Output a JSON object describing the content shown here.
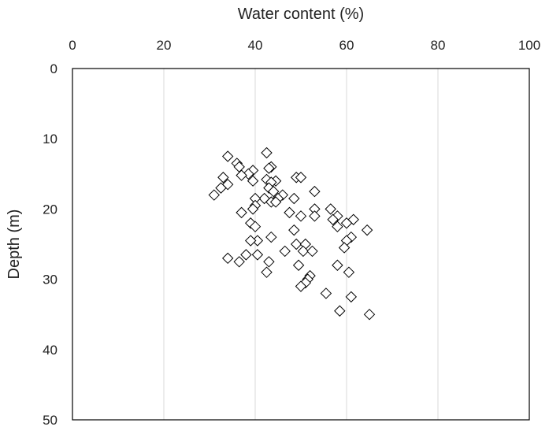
{
  "chart_data": {
    "type": "scatter",
    "xlabel": "Water content (%)",
    "ylabel": "Depth (m)",
    "xlim": [
      0,
      100
    ],
    "ylim": [
      0,
      50
    ],
    "x_axis_position": "top",
    "y_axis_inverted": true,
    "x_ticks": [
      0,
      20,
      40,
      60,
      80,
      100
    ],
    "y_ticks": [
      0,
      10,
      20,
      30,
      40,
      50
    ],
    "grid": "vertical",
    "legend": "none",
    "marker": "diamond-open",
    "marker_color": "#000000",
    "points": [
      {
        "x": 42.5,
        "y": 12.0
      },
      {
        "x": 34.0,
        "y": 12.5
      },
      {
        "x": 36.0,
        "y": 13.5
      },
      {
        "x": 36.5,
        "y": 14.0
      },
      {
        "x": 43.5,
        "y": 14.0
      },
      {
        "x": 39.5,
        "y": 14.5
      },
      {
        "x": 43.0,
        "y": 14.2
      },
      {
        "x": 38.5,
        "y": 15.0
      },
      {
        "x": 37.0,
        "y": 15.2
      },
      {
        "x": 49.0,
        "y": 15.5
      },
      {
        "x": 50.0,
        "y": 15.5
      },
      {
        "x": 33.0,
        "y": 15.5
      },
      {
        "x": 42.5,
        "y": 15.8
      },
      {
        "x": 44.5,
        "y": 16.0
      },
      {
        "x": 39.5,
        "y": 16.0
      },
      {
        "x": 43.5,
        "y": 16.2
      },
      {
        "x": 34.0,
        "y": 16.5
      },
      {
        "x": 32.5,
        "y": 17.0
      },
      {
        "x": 43.0,
        "y": 17.0
      },
      {
        "x": 44.0,
        "y": 17.5
      },
      {
        "x": 53.0,
        "y": 17.5
      },
      {
        "x": 31.0,
        "y": 18.0
      },
      {
        "x": 46.0,
        "y": 18.0
      },
      {
        "x": 42.0,
        "y": 18.5
      },
      {
        "x": 40.0,
        "y": 18.5
      },
      {
        "x": 48.5,
        "y": 18.5
      },
      {
        "x": 45.0,
        "y": 18.5
      },
      {
        "x": 43.5,
        "y": 19.0
      },
      {
        "x": 44.5,
        "y": 19.0
      },
      {
        "x": 40.0,
        "y": 19.5
      },
      {
        "x": 39.5,
        "y": 20.0
      },
      {
        "x": 53.0,
        "y": 20.0
      },
      {
        "x": 56.5,
        "y": 20.0
      },
      {
        "x": 37.0,
        "y": 20.5
      },
      {
        "x": 47.5,
        "y": 20.5
      },
      {
        "x": 50.0,
        "y": 21.0
      },
      {
        "x": 53.0,
        "y": 21.0
      },
      {
        "x": 58.0,
        "y": 21.0
      },
      {
        "x": 57.0,
        "y": 21.5
      },
      {
        "x": 61.5,
        "y": 21.5
      },
      {
        "x": 39.0,
        "y": 22.0
      },
      {
        "x": 60.0,
        "y": 22.0
      },
      {
        "x": 40.0,
        "y": 22.5
      },
      {
        "x": 58.0,
        "y": 22.5
      },
      {
        "x": 48.5,
        "y": 23.0
      },
      {
        "x": 64.5,
        "y": 23.0
      },
      {
        "x": 43.5,
        "y": 24.0
      },
      {
        "x": 61.0,
        "y": 24.0
      },
      {
        "x": 40.5,
        "y": 24.5
      },
      {
        "x": 39.0,
        "y": 24.5
      },
      {
        "x": 60.0,
        "y": 24.5
      },
      {
        "x": 49.0,
        "y": 25.0
      },
      {
        "x": 51.0,
        "y": 25.0
      },
      {
        "x": 59.5,
        "y": 25.5
      },
      {
        "x": 50.5,
        "y": 26.0
      },
      {
        "x": 52.5,
        "y": 26.0
      },
      {
        "x": 46.5,
        "y": 26.0
      },
      {
        "x": 40.5,
        "y": 26.5
      },
      {
        "x": 38.0,
        "y": 26.5
      },
      {
        "x": 34.0,
        "y": 27.0
      },
      {
        "x": 36.5,
        "y": 27.5
      },
      {
        "x": 43.0,
        "y": 27.5
      },
      {
        "x": 49.5,
        "y": 28.0
      },
      {
        "x": 58.0,
        "y": 28.0
      },
      {
        "x": 42.5,
        "y": 29.0
      },
      {
        "x": 60.5,
        "y": 29.0
      },
      {
        "x": 52.0,
        "y": 29.5
      },
      {
        "x": 51.5,
        "y": 30.0
      },
      {
        "x": 51.0,
        "y": 30.5
      },
      {
        "x": 50.0,
        "y": 31.0
      },
      {
        "x": 55.5,
        "y": 32.0
      },
      {
        "x": 61.0,
        "y": 32.5
      },
      {
        "x": 58.5,
        "y": 34.5
      },
      {
        "x": 65.0,
        "y": 35.0
      }
    ]
  }
}
